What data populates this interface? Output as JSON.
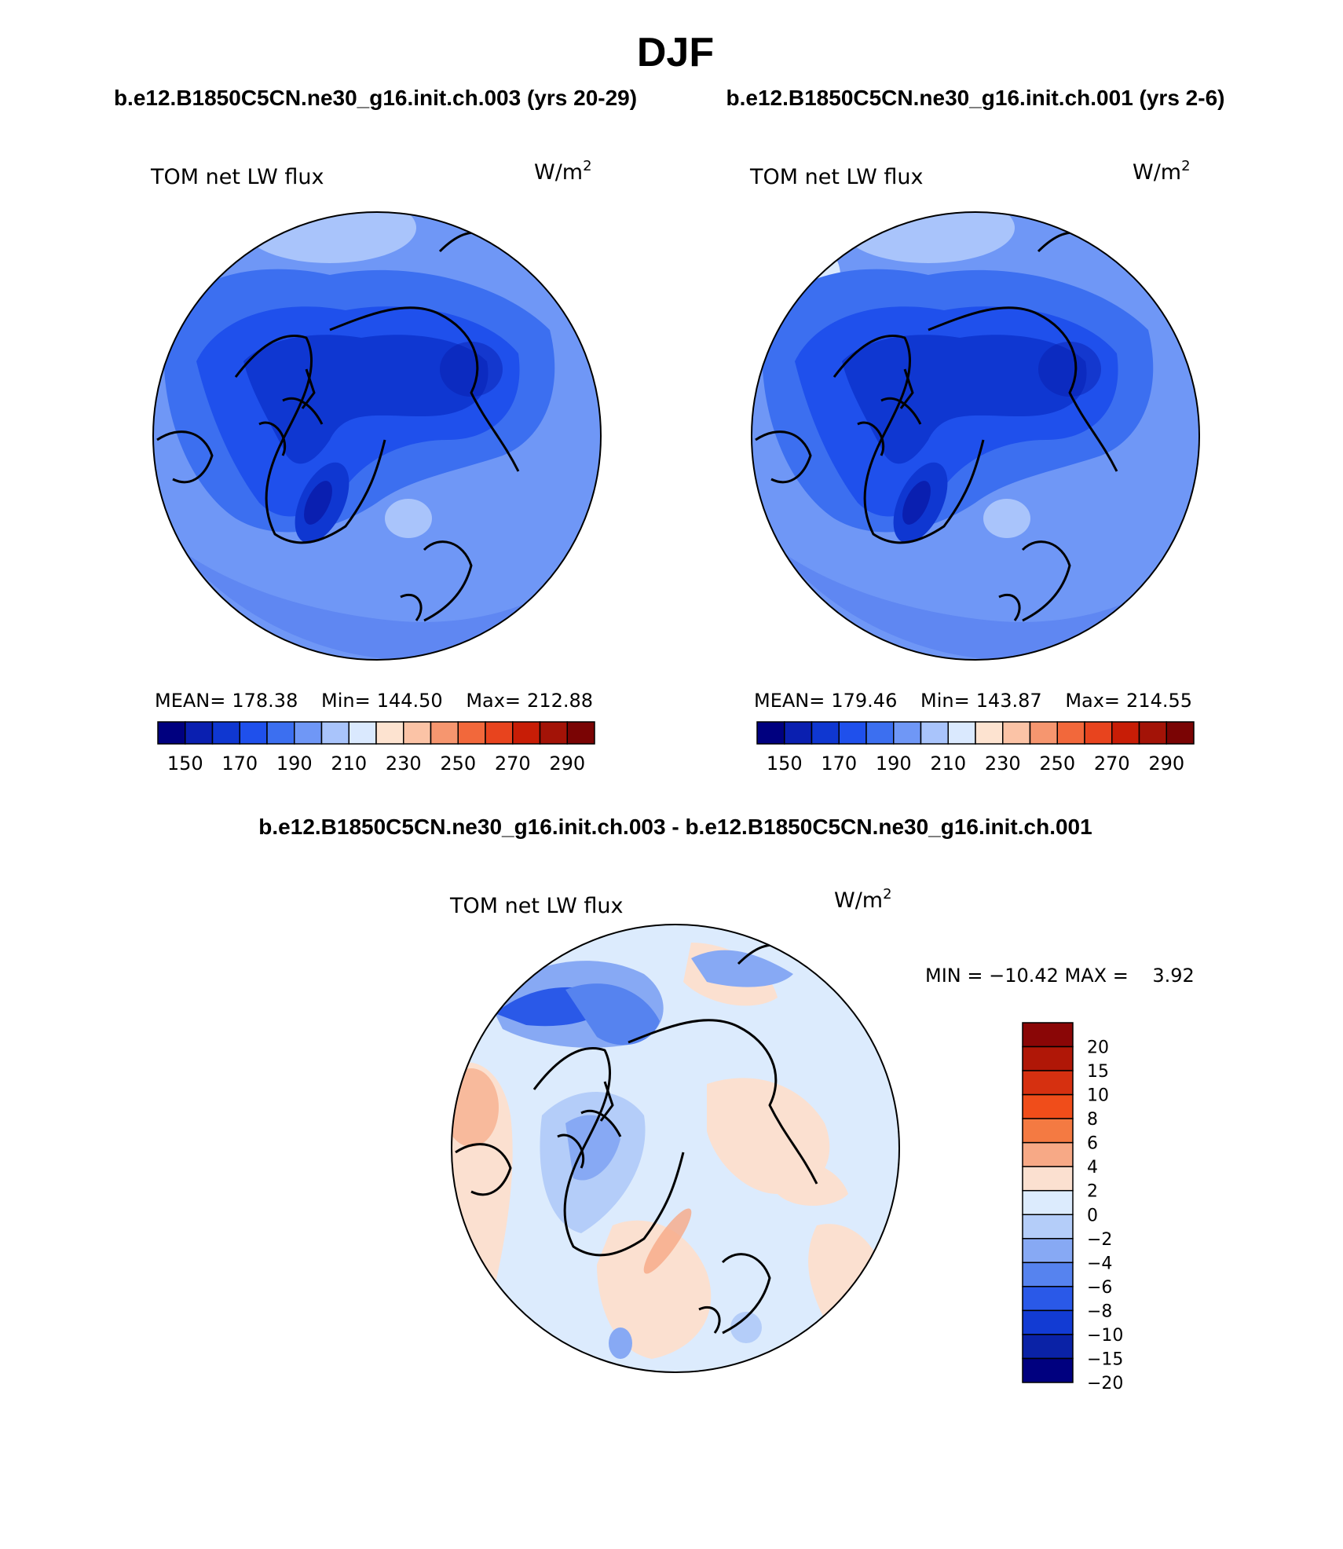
{
  "figure": {
    "title": "DJF",
    "left_case": "b.e12.B1850C5CN.ne30_g16.init.ch.003 (yrs 20-29)",
    "right_case": "b.e12.B1850C5CN.ne30_g16.init.ch.001 (yrs 2-6)",
    "diff_title": "b.e12.B1850C5CN.ne30_g16.init.ch.003 - b.e12.B1850C5CN.ne30_g16.init.ch.001"
  },
  "panels": [
    {
      "variable": "TOM net LW flux",
      "units_base": "W/m",
      "units_exp": "2",
      "mean_label": "MEAN=",
      "mean": "178.38",
      "min_label": "Min=",
      "min": "144.50",
      "max_label": "Max=",
      "max": "212.88"
    },
    {
      "variable": "TOM net LW flux",
      "units_base": "W/m",
      "units_exp": "2",
      "mean_label": "MEAN=",
      "mean": "179.46",
      "min_label": "Min=",
      "min": "143.87",
      "max_label": "Max=",
      "max": "214.55"
    },
    {
      "variable": "TOM net LW flux",
      "units_base": "W/m",
      "units_exp": "2",
      "minmax_text": "MIN = −10.42 MAX =    3.92"
    }
  ],
  "colorbar_abs": {
    "colors": [
      "#00007f",
      "#0a1fb0",
      "#0f37d1",
      "#1f50ec",
      "#3c6ff0",
      "#6f97f6",
      "#a9c4fb",
      "#dae9fe",
      "#fde3d0",
      "#fbc3a6",
      "#f6966f",
      "#f2683b",
      "#e8441e",
      "#c81d06",
      "#a31307",
      "#7a0404"
    ],
    "labels": [
      "150",
      "170",
      "190",
      "210",
      "230",
      "250",
      "270",
      "290"
    ]
  },
  "colorbar_diff": {
    "colors": [
      "#8a0606",
      "#b01707",
      "#d63010",
      "#f04d1a",
      "#f47a42",
      "#f7a986",
      "#fbe0d0",
      "#dcebfd",
      "#b4cdf9",
      "#87a9f4",
      "#5683ef",
      "#2a59e8",
      "#123bd3",
      "#0a22a6",
      "#00007f"
    ],
    "labels": [
      "20",
      "15",
      "10",
      "8",
      "6",
      "4",
      "2",
      "0",
      "−2",
      "−4",
      "−6",
      "−8",
      "−10",
      "−15",
      "−20"
    ]
  },
  "chart_data": {
    "type": "heatmap",
    "projection": "north polar stereographic",
    "season": "DJF",
    "variable": "TOM net LW flux",
    "units": "W/m2",
    "maps": [
      {
        "case": "b.e12.B1850C5CN.ne30_g16.init.ch.003 (yrs 20-29)",
        "mean": 178.38,
        "min": 144.5,
        "max": 212.88,
        "levels": [
          150,
          160,
          170,
          180,
          190,
          200,
          210,
          220,
          230,
          240,
          250,
          260,
          270,
          280,
          290
        ]
      },
      {
        "case": "b.e12.B1850C5CN.ne30_g16.init.ch.001 (yrs 2-6)",
        "mean": 179.46,
        "min": 143.87,
        "max": 214.55,
        "levels": [
          150,
          160,
          170,
          180,
          190,
          200,
          210,
          220,
          230,
          240,
          250,
          260,
          270,
          280,
          290
        ]
      },
      {
        "case": "b.e12.B1850C5CN.ne30_g16.init.ch.003 - b.e12.B1850C5CN.ne30_g16.init.ch.001",
        "min": -10.42,
        "max": 3.92,
        "levels": [
          -20,
          -15,
          -10,
          -8,
          -6,
          -4,
          -2,
          0,
          2,
          4,
          6,
          8,
          10,
          15,
          20
        ]
      }
    ]
  }
}
